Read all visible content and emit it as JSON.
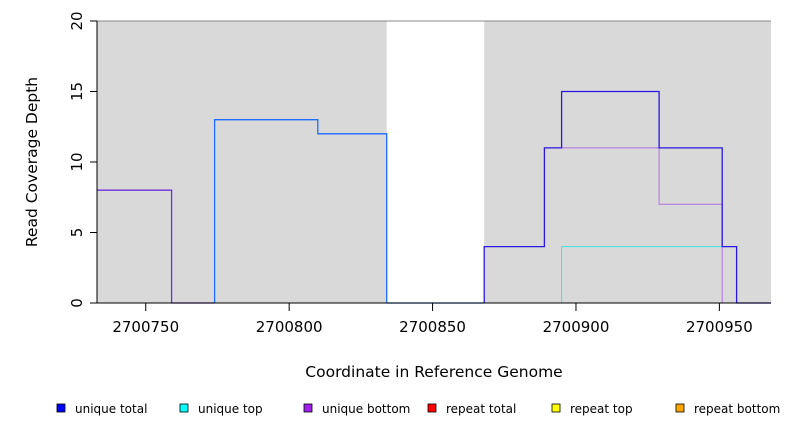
{
  "chart_data": {
    "type": "line",
    "xlabel": "Coordinate in Reference Genome",
    "ylabel": "Read Coverage Depth",
    "xlim": [
      2700733,
      2700968
    ],
    "ylim": [
      0,
      20
    ],
    "x_ticks": [
      2700750,
      2700800,
      2700850,
      2700900,
      2700950
    ],
    "y_ticks": [
      0,
      5,
      10,
      15,
      20
    ],
    "background_color": "#d9d9d9",
    "shaded_regions": [
      {
        "from": 2700733,
        "to": 2700834
      },
      {
        "from": 2700868,
        "to": 2700968
      }
    ],
    "legend_position": "bottom",
    "legend": [
      {
        "label": "unique total",
        "color": "#0000ff"
      },
      {
        "label": "unique top",
        "color": "#00ffff"
      },
      {
        "label": "unique bottom",
        "color": "#a020f0"
      },
      {
        "label": "repeat total",
        "color": "#ff0000"
      },
      {
        "label": "repeat top",
        "color": "#ffff00"
      },
      {
        "label": "repeat bottom",
        "color": "#ffa500"
      }
    ],
    "series": [
      {
        "color": "#00ff00",
        "width": 1,
        "points": [
          [
            2700733,
            0
          ],
          [
            2700759,
            0
          ]
        ]
      },
      {
        "color": "#7030d8",
        "width": 1.3,
        "points": [
          [
            2700733,
            8
          ],
          [
            2700759,
            8
          ],
          [
            2700759,
            0
          ],
          [
            2700774,
            0
          ]
        ]
      },
      {
        "color": "#ff6060",
        "width": 1,
        "points": [
          [
            2700774,
            0
          ],
          [
            2700834,
            0
          ]
        ]
      },
      {
        "color": "#1e6bff",
        "width": 1.3,
        "points": [
          [
            2700774,
            0
          ],
          [
            2700774,
            13
          ],
          [
            2700810,
            13
          ],
          [
            2700810,
            12
          ],
          [
            2700834,
            12
          ],
          [
            2700834,
            0
          ],
          [
            2700868,
            0
          ]
        ]
      },
      {
        "color": "#00ff00",
        "width": 1,
        "points": [
          [
            2700868,
            0
          ],
          [
            2700895,
            0
          ]
        ]
      },
      {
        "color": "#ffa500",
        "width": 1,
        "points": [
          [
            2700895,
            0
          ],
          [
            2700952,
            0
          ]
        ]
      },
      {
        "color": "#40e0e0",
        "width": 1,
        "points": [
          [
            2700895,
            0
          ],
          [
            2700895,
            4
          ],
          [
            2700952,
            4
          ]
        ]
      },
      {
        "color": "#b070e0",
        "width": 1,
        "points": [
          [
            2700889,
            11
          ],
          [
            2700929,
            11
          ],
          [
            2700929,
            7
          ],
          [
            2700951,
            7
          ],
          [
            2700951,
            0
          ]
        ]
      },
      {
        "color": "#2a18e0",
        "width": 1.3,
        "points": [
          [
            2700868,
            0
          ],
          [
            2700868,
            4
          ],
          [
            2700889,
            4
          ],
          [
            2700889,
            11
          ],
          [
            2700895,
            11
          ],
          [
            2700895,
            15
          ],
          [
            2700929,
            15
          ],
          [
            2700929,
            11
          ],
          [
            2700951,
            11
          ],
          [
            2700951,
            4
          ],
          [
            2700956,
            4
          ],
          [
            2700956,
            0
          ],
          [
            2700968,
            0
          ]
        ]
      }
    ]
  }
}
